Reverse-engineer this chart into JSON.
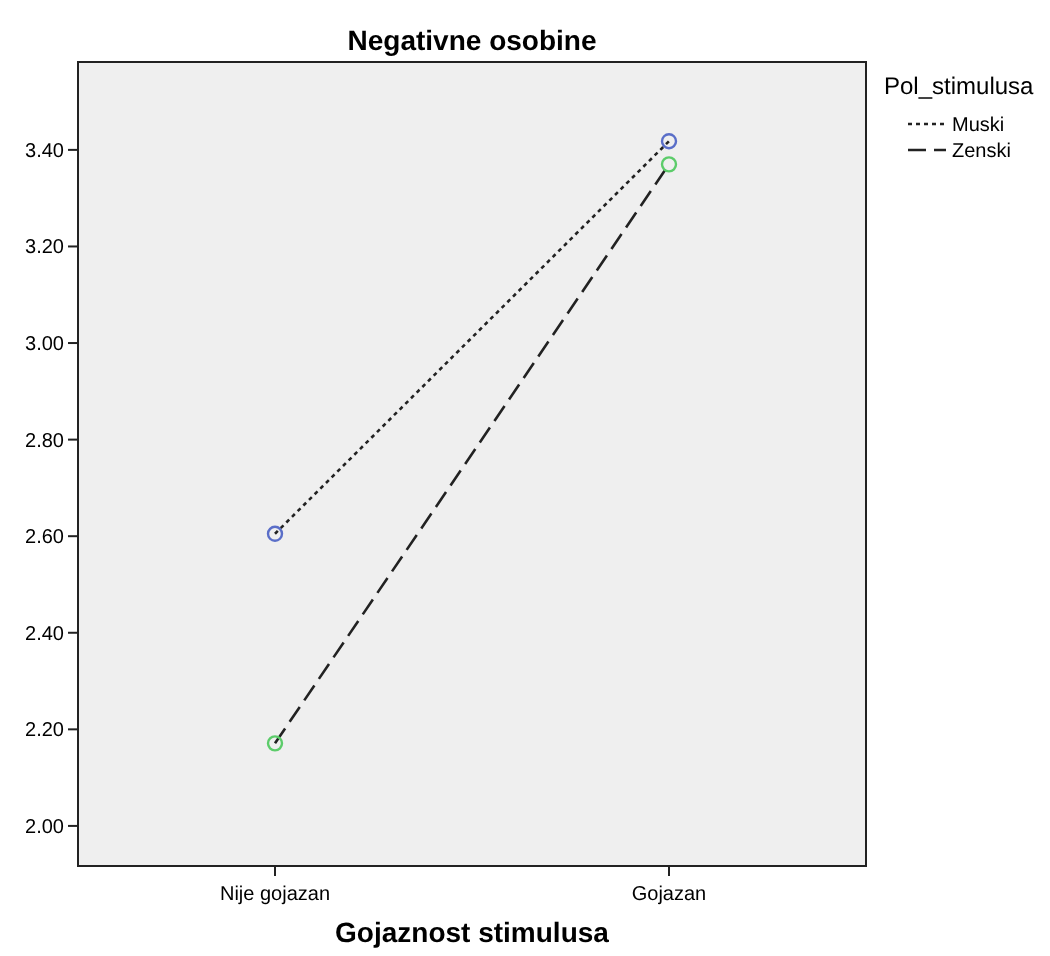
{
  "chart_data": {
    "type": "line",
    "title": "Negativne osobine",
    "xlabel": "Gojaznost stimulusa",
    "legend_title": "Pol_stimulusa",
    "legend": "right",
    "categories": [
      "Nije gojazan",
      "Gojazan"
    ],
    "series": [
      {
        "name": "Muski",
        "color": "#5a6ec8",
        "line_style": "dotted",
        "marker": "circle",
        "values": [
          2.605,
          3.418
        ]
      },
      {
        "name": "Zenski",
        "color": "#5ccc6a",
        "line_style": "dashed",
        "marker": "circle",
        "values": [
          2.171,
          3.37
        ]
      }
    ],
    "ylim": [
      1.917,
      3.582
    ],
    "yticks": [
      {
        "value": 2,
        "label": "2.00"
      },
      {
        "value": 2.2,
        "label": "2.20"
      },
      {
        "value": 2.4,
        "label": "2.40"
      },
      {
        "value": 2.6,
        "label": "2.60"
      },
      {
        "value": 2.8,
        "label": "2.80"
      },
      {
        "value": 3,
        "label": "3.00"
      },
      {
        "value": 3.2,
        "label": "3.20"
      },
      {
        "value": 3.4,
        "label": "3.40"
      }
    ],
    "grid": false
  }
}
